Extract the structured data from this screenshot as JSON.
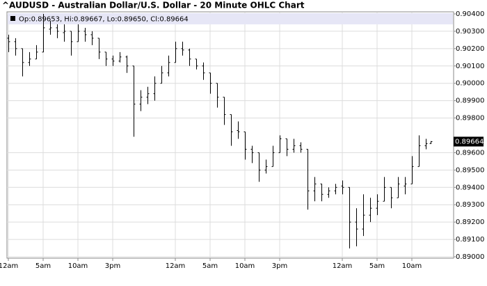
{
  "chart_data": {
    "type": "ohlc",
    "title": "^AUDUSD - Australian Dollar/U.S. Dollar - 20 Minute OHLC Chart",
    "legend_text": "Op:0.89653, Hi:0.89667, Lo:0.89650, Cl:0.89664",
    "color": "#000000",
    "grid": true,
    "x": [
      0,
      1,
      2,
      3,
      4,
      5,
      6,
      7,
      8,
      9,
      10,
      11,
      12,
      13,
      14,
      15,
      16,
      17,
      18,
      19,
      20,
      21,
      22,
      23,
      24,
      25,
      26,
      27,
      28,
      29,
      30,
      31,
      32,
      33,
      34,
      35,
      36,
      37,
      38,
      39,
      40,
      41,
      42,
      43,
      44,
      45,
      46,
      47,
      48,
      49,
      50,
      51,
      52,
      53,
      54,
      55,
      56,
      57,
      58,
      59,
      60,
      60.67
    ],
    "open": [
      0.9026,
      0.9024,
      0.902,
      0.9012,
      0.9014,
      0.9018,
      0.90312,
      0.9032,
      0.90292,
      0.903,
      0.9024,
      0.903,
      0.9028,
      0.9026,
      0.9018,
      0.9014,
      0.90128,
      0.90152,
      0.901,
      0.8988,
      0.8992,
      0.8994,
      0.9,
      0.9006,
      0.9012,
      0.902,
      0.90192,
      0.9014,
      0.901,
      0.9006,
      0.9,
      0.8992,
      0.8982,
      0.89728,
      0.8972,
      0.8962,
      0.896,
      0.895,
      0.8952,
      0.896,
      0.8968,
      0.8962,
      0.8964,
      0.8962,
      0.8938,
      0.8942,
      0.8936,
      0.8938,
      0.89408,
      0.894,
      0.892,
      0.8916,
      0.8924,
      0.8928,
      0.8932,
      0.894,
      0.8934,
      0.89408,
      0.8942,
      0.8952,
      0.8964,
      0.89653
    ],
    "high": [
      0.9028,
      0.9026,
      0.902,
      0.9018,
      0.9022,
      0.904,
      0.9036,
      0.9034,
      0.9034,
      0.903,
      0.9034,
      0.9032,
      0.903,
      0.9026,
      0.9018,
      0.9016,
      0.9018,
      0.9016,
      0.901,
      0.8996,
      0.8998,
      0.9004,
      0.901,
      0.9016,
      0.9024,
      0.9024,
      0.902,
      0.9014,
      0.9012,
      0.9006,
      0.9,
      0.8992,
      0.8982,
      0.8978,
      0.8972,
      0.8964,
      0.896,
      0.8956,
      0.8964,
      0.897,
      0.8968,
      0.8968,
      0.8966,
      0.8962,
      0.8946,
      0.8942,
      0.894,
      0.8942,
      0.8944,
      0.894,
      0.8928,
      0.8936,
      0.8934,
      0.8936,
      0.8946,
      0.894,
      0.8946,
      0.8946,
      0.8958,
      0.897,
      0.8968,
      0.89667
    ],
    "low": [
      0.9018,
      0.9016,
      0.9004,
      0.901,
      0.9014,
      0.9018,
      0.9028,
      0.9026,
      0.9024,
      0.9016,
      0.9024,
      0.9024,
      0.9022,
      0.9014,
      0.901,
      0.901,
      0.9012,
      0.9006,
      0.89692,
      0.8984,
      0.8988,
      0.899,
      0.9,
      0.9004,
      0.9012,
      0.9016,
      0.901,
      0.9008,
      0.9002,
      0.8994,
      0.8986,
      0.8976,
      0.8964,
      0.8968,
      0.8956,
      0.8954,
      0.89432,
      0.8948,
      0.8952,
      0.896,
      0.8958,
      0.896,
      0.896,
      0.89272,
      0.8932,
      0.8932,
      0.8934,
      0.8936,
      0.8936,
      0.89048,
      0.8906,
      0.8912,
      0.892,
      0.8924,
      0.8932,
      0.8928,
      0.8934,
      0.8936,
      0.8942,
      0.8952,
      0.8962,
      0.8965
    ],
    "close": [
      0.9024,
      0.902,
      0.9012,
      0.9014,
      0.9018,
      0.9032,
      0.9032,
      0.903,
      0.903,
      0.9024,
      0.903,
      0.9028,
      0.9026,
      0.9018,
      0.9014,
      0.90128,
      0.90152,
      0.901,
      0.8988,
      0.8992,
      0.8994,
      0.9,
      0.9006,
      0.9012,
      0.902,
      0.90192,
      0.9014,
      0.901,
      0.9006,
      0.9,
      0.8992,
      0.8982,
      0.8972,
      0.8972,
      0.8962,
      0.896,
      0.895,
      0.8952,
      0.896,
      0.8968,
      0.8962,
      0.8964,
      0.8962,
      0.8938,
      0.8942,
      0.8936,
      0.8938,
      0.894,
      0.894,
      0.892,
      0.8916,
      0.8924,
      0.8928,
      0.8932,
      0.894,
      0.8934,
      0.8942,
      0.8942,
      0.8952,
      0.8964,
      0.89652,
      0.89664
    ],
    "xlim": [
      -0.2,
      64
    ],
    "xticks": [
      {
        "value": 0,
        "label": "12am"
      },
      {
        "value": 5,
        "label": "5am"
      },
      {
        "value": 10,
        "label": "10am"
      },
      {
        "value": 15,
        "label": "3pm"
      },
      {
        "value": 24,
        "label": "12am"
      },
      {
        "value": 29,
        "label": "5am"
      },
      {
        "value": 34,
        "label": "10am"
      },
      {
        "value": 39,
        "label": "3pm"
      },
      {
        "value": 48,
        "label": "12am"
      },
      {
        "value": 53,
        "label": "5am"
      },
      {
        "value": 58,
        "label": "10am"
      }
    ],
    "ylim": [
      0.89,
      0.904
    ],
    "yticks": [
      {
        "value": 0.904,
        "label": "0.90400"
      },
      {
        "value": 0.903,
        "label": "0.90300"
      },
      {
        "value": 0.902,
        "label": "0.90200"
      },
      {
        "value": 0.901,
        "label": "0.90100"
      },
      {
        "value": 0.9,
        "label": "0.90000"
      },
      {
        "value": 0.899,
        "label": "0.89900"
      },
      {
        "value": 0.898,
        "label": "0.89800"
      },
      {
        "value": 0.896,
        "label": "0.89600"
      },
      {
        "value": 0.895,
        "label": "0.89500"
      },
      {
        "value": 0.894,
        "label": "0.89400"
      },
      {
        "value": 0.893,
        "label": "0.89300"
      },
      {
        "value": 0.892,
        "label": "0.89200"
      },
      {
        "value": 0.891,
        "label": "0.89100"
      },
      {
        "value": 0.89,
        "label": "0.89000"
      }
    ]
  }
}
